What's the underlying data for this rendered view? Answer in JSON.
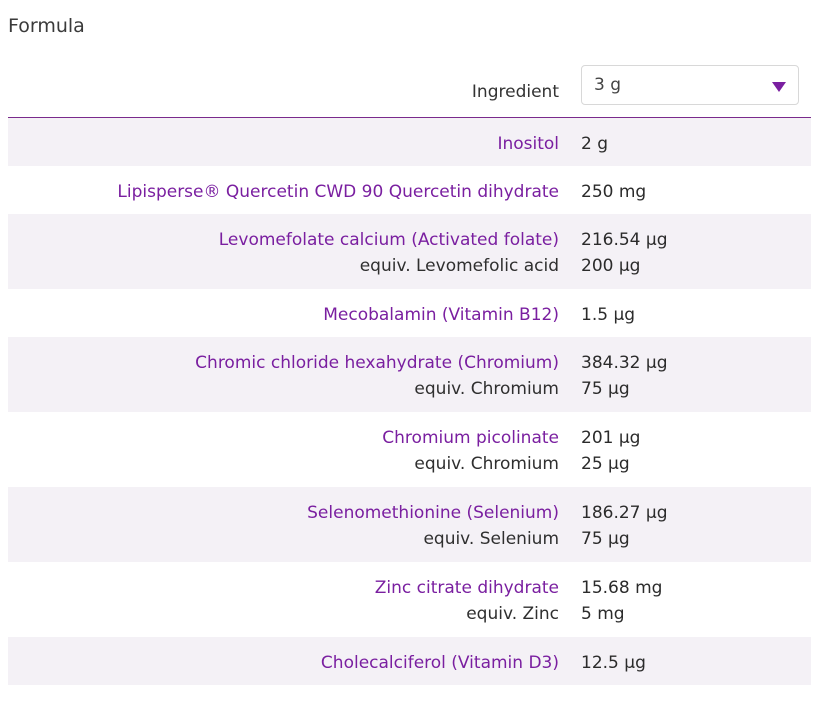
{
  "formula_title": "Formula",
  "header": {
    "column_label": "Ingredient",
    "serving_select": {
      "value": "3 g"
    }
  },
  "rows": [
    {
      "name": "Inositol",
      "amount": "2 g"
    },
    {
      "name": "Lipisperse® Quercetin CWD 90 Quercetin dihydrate",
      "amount": "250 mg"
    },
    {
      "name": "Levomefolate calcium (Activated folate)",
      "amount": "216.54 µg",
      "equiv_label": "equiv. Levomefolic acid",
      "equiv_amount": "200 µg"
    },
    {
      "name": "Mecobalamin (Vitamin B12)",
      "amount": "1.5 µg"
    },
    {
      "name": "Chromic chloride hexahydrate (Chromium)",
      "amount": "384.32 µg",
      "equiv_label": "equiv. Chromium",
      "equiv_amount": "75 µg"
    },
    {
      "name": "Chromium picolinate",
      "amount": "201 µg",
      "equiv_label": "equiv. Chromium",
      "equiv_amount": "25 µg"
    },
    {
      "name": "Selenomethionine (Selenium)",
      "amount": "186.27 µg",
      "equiv_label": "equiv. Selenium",
      "equiv_amount": "75 µg"
    },
    {
      "name": "Zinc citrate dihydrate",
      "amount": "15.68 mg",
      "equiv_label": "equiv. Zinc",
      "equiv_amount": "5 mg"
    },
    {
      "name": "Cholecalciferol (Vitamin D3)",
      "amount": "12.5 µg"
    }
  ],
  "colors": {
    "ingredient_name": "#7a1fa0",
    "row_shade": "#f4f1f6",
    "header_rule": "#7a2a8c"
  }
}
